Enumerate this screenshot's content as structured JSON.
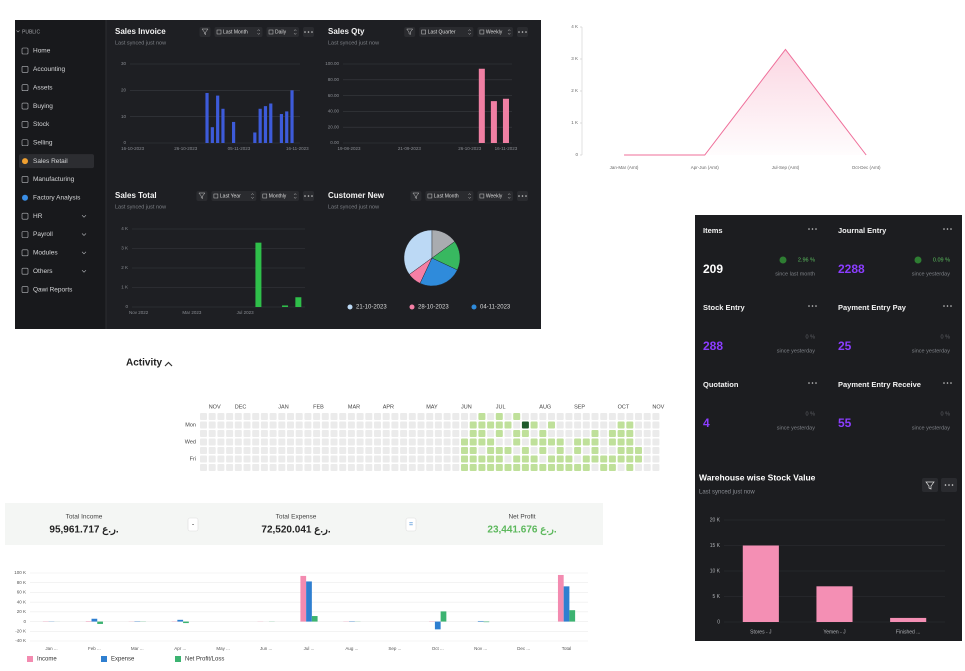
{
  "sidebar": {
    "section": "PUBLIC",
    "items": [
      "Home",
      "Accounting",
      "Assets",
      "Buying",
      "Stock",
      "Selling",
      "Sales Retail",
      "Manufacturing",
      "Factory Analysis",
      "HR",
      "Payroll",
      "Modules",
      "Others",
      "Qawi Reports"
    ]
  },
  "chart_data": [
    {
      "type": "bar",
      "title": "Sales Invoice",
      "subtitle": "Last synced just now",
      "filters": [
        "Last Month",
        "Daily"
      ],
      "categories": [
        "16-10-2023",
        null,
        null,
        null,
        null,
        null,
        null,
        null,
        null,
        null,
        "26-10-2023",
        null,
        null,
        null,
        null,
        null,
        null,
        null,
        null,
        null,
        "05-11-2023",
        null,
        null,
        null,
        null,
        null,
        null,
        null,
        null,
        null,
        null,
        "16-11-2023"
      ],
      "values": [
        null,
        null,
        null,
        null,
        null,
        null,
        null,
        null,
        null,
        null,
        null,
        null,
        null,
        null,
        19,
        6,
        18,
        13,
        null,
        8,
        null,
        null,
        null,
        4,
        13,
        14,
        15,
        null,
        11,
        12,
        20,
        null
      ],
      "color": "#3d5bd9",
      "ylim": [
        0,
        30
      ],
      "yticks": [
        0,
        10,
        20,
        30
      ],
      "grid": true
    },
    {
      "type": "bar",
      "title": "Sales Qty",
      "subtitle": "Last synced just now",
      "filters": [
        "Last Quarter",
        "Weekly"
      ],
      "categories": [
        "19-08-2023",
        null,
        null,
        null,
        null,
        "21-09-2023",
        null,
        null,
        null,
        null,
        "26-10-2023",
        null,
        null,
        "16-11-2023"
      ],
      "values": [
        null,
        null,
        null,
        null,
        null,
        null,
        null,
        null,
        null,
        null,
        null,
        94,
        53,
        56
      ],
      "color": "#f07fa3",
      "ylim": [
        0,
        100
      ],
      "yticks": [
        {
          "value": 0,
          "label": "0.00"
        },
        {
          "value": 20,
          "label": "20.00"
        },
        {
          "value": 40,
          "label": "40.00"
        },
        {
          "value": 60,
          "label": "60.00"
        },
        {
          "value": 80,
          "label": "80.00"
        },
        {
          "value": 100,
          "label": "100.00"
        }
      ],
      "grid": true
    },
    {
      "type": "bar",
      "title": "Sales Total",
      "subtitle": "Last synced just now",
      "filters": [
        "Last Year",
        "Monthly"
      ],
      "categories": [
        "Nov 2022",
        null,
        null,
        null,
        "Mar 2023",
        null,
        null,
        null,
        "Jul 2023",
        null,
        null,
        null,
        null
      ],
      "values": [
        null,
        null,
        null,
        null,
        null,
        null,
        null,
        null,
        null,
        3300,
        null,
        80,
        500
      ],
      "color": "#2fbf4a",
      "ylim": [
        0,
        4000
      ],
      "yticks": [
        0,
        {
          "value": 1000,
          "label": "1 K"
        },
        {
          "value": 2000,
          "label": "2 K"
        },
        {
          "value": 3000,
          "label": "3 K"
        },
        {
          "value": 4000,
          "label": "4 K"
        }
      ],
      "grid": true
    },
    {
      "type": "pie",
      "title": "Customer New",
      "subtitle": "Last synced just now",
      "filters": [
        "Last Month",
        "Weekly"
      ],
      "categories": [
        "21-10-2023",
        "28-10-2023",
        "04-11-2023",
        null,
        null
      ],
      "values": [
        35,
        8,
        25,
        17,
        15
      ],
      "colors": [
        "#bcd9f5",
        "#f57fa5",
        "#2f8bdb",
        "#38b860",
        "#a9acb0"
      ]
    },
    {
      "type": "line",
      "categories": [
        "Jan-Mar (Amt)",
        "Apr-Jun (Amt)",
        "Jul-Sep (Amt)",
        "Oct-Dec (Amt)"
      ],
      "values": [
        0,
        0,
        3300,
        0
      ],
      "color": "#ef6f9a",
      "ylim": [
        0,
        4000
      ],
      "yticks": [
        0,
        {
          "value": 1000,
          "label": "1 K"
        },
        {
          "value": 2000,
          "label": "2 K"
        },
        {
          "value": 3000,
          "label": "3 K"
        },
        {
          "value": 4000,
          "label": "4 K"
        }
      ],
      "grid": false
    },
    {
      "type": "bar",
      "title": "Warehouse wise Stock Value",
      "subtitle": "Last synced just now",
      "categories": [
        "Stores - J",
        "Yemen - J",
        "Finished ..."
      ],
      "values": [
        15000,
        7000,
        800
      ],
      "color": "#f48fb4",
      "ylim": [
        0,
        20000
      ],
      "yticks": [
        0,
        {
          "value": 5000,
          "label": "5 K"
        },
        {
          "value": 10000,
          "label": "10 K"
        },
        {
          "value": 15000,
          "label": "15 K"
        },
        {
          "value": 20000,
          "label": "20 K"
        }
      ],
      "grid": true
    },
    {
      "type": "grouped_bar",
      "categories": [
        "Jan ...",
        "Feb ...",
        "Mar ...",
        "Apr ...",
        "May ...",
        "Jun ...",
        "Jul ...",
        "Aug ...",
        "Sep ...",
        "Oct ...",
        "Nov ...",
        "Dec ...",
        "Total"
      ],
      "series": [
        {
          "name": "Income",
          "color": "#f38bb0",
          "values": [
            500,
            900,
            300,
            500,
            0,
            300,
            94000,
            400,
            0,
            600,
            0,
            0,
            95961.717
          ]
        },
        {
          "name": "Expense",
          "color": "#2f7fd0",
          "values": [
            400,
            5800,
            700,
            3600,
            0,
            0,
            82600,
            700,
            0,
            -16000,
            1200,
            0,
            72520.041
          ]
        },
        {
          "name": "Net Profit/Loss",
          "color": "#3cb371",
          "values": [
            100,
            -4900,
            -400,
            -3100,
            0,
            300,
            11400,
            -300,
            0,
            21000,
            -1200,
            0,
            23441.676
          ]
        }
      ],
      "ylim": [
        -40000,
        100000
      ],
      "yticks": [
        {
          "value": -40000,
          "label": "-40 K"
        },
        {
          "value": -20000,
          "label": "-20 K"
        },
        0,
        {
          "value": 20000,
          "label": "20 K"
        },
        {
          "value": 40000,
          "label": "40 K"
        },
        {
          "value": 60000,
          "label": "60 K"
        },
        {
          "value": 80000,
          "label": "80 K"
        },
        {
          "value": 100000,
          "label": "100 K"
        }
      ],
      "grid": true
    },
    {
      "type": "heatmap",
      "title": "Activity",
      "months": [
        "NOV",
        "DEC",
        "JAN",
        "FEB",
        "MAR",
        "APR",
        "MAY",
        "JUN",
        "JUL",
        "AUG",
        "SEP",
        "OCT",
        "NOV"
      ],
      "days": [
        null,
        "Mon",
        null,
        "Wed",
        null,
        "Fri",
        null
      ],
      "colors": [
        "#ebebeb",
        "#bfe09a",
        "#9fcf72",
        "#1e5a2a"
      ],
      "values": [
        [
          0,
          0,
          0,
          0,
          0,
          0,
          0
        ],
        [
          0,
          0,
          0,
          0,
          0,
          0,
          0
        ],
        [
          0,
          0,
          0,
          0,
          0,
          0,
          0
        ],
        [
          0,
          0,
          0,
          0,
          0,
          0,
          0
        ],
        [
          0,
          0,
          0,
          0,
          0,
          0,
          0
        ],
        [
          0,
          0,
          0,
          0,
          0,
          0,
          0
        ],
        [
          0,
          0,
          0,
          0,
          0,
          0,
          0
        ],
        [
          0,
          0,
          0,
          0,
          0,
          0,
          0
        ],
        [
          0,
          0,
          0,
          0,
          0,
          0,
          0
        ],
        [
          0,
          0,
          0,
          0,
          0,
          0,
          0
        ],
        [
          0,
          0,
          0,
          0,
          0,
          0,
          0
        ],
        [
          0,
          0,
          0,
          0,
          0,
          0,
          0
        ],
        [
          0,
          0,
          0,
          0,
          0,
          0,
          0
        ],
        [
          0,
          0,
          0,
          0,
          0,
          0,
          0
        ],
        [
          0,
          0,
          0,
          0,
          0,
          0,
          0
        ],
        [
          0,
          0,
          0,
          0,
          0,
          0,
          0
        ],
        [
          0,
          0,
          0,
          0,
          0,
          0,
          0
        ],
        [
          0,
          0,
          0,
          0,
          0,
          0,
          0
        ],
        [
          0,
          0,
          0,
          0,
          0,
          0,
          0
        ],
        [
          0,
          0,
          0,
          0,
          0,
          0,
          0
        ],
        [
          0,
          0,
          0,
          0,
          0,
          0,
          0
        ],
        [
          0,
          0,
          0,
          0,
          0,
          0,
          0
        ],
        [
          0,
          0,
          0,
          0,
          0,
          0,
          0
        ],
        [
          0,
          0,
          0,
          0,
          0,
          0,
          0
        ],
        [
          0,
          0,
          0,
          0,
          0,
          0,
          0
        ],
        [
          0,
          0,
          0,
          0,
          0,
          0,
          0
        ],
        [
          0,
          0,
          0,
          0,
          0,
          0,
          0
        ],
        [
          0,
          0,
          0,
          0,
          0,
          0,
          0
        ],
        [
          0,
          0,
          0,
          0,
          0,
          0,
          0
        ],
        [
          0,
          0,
          0,
          0,
          0,
          0,
          0
        ],
        [
          0,
          0,
          0,
          1,
          1,
          1,
          1
        ],
        [
          0,
          1,
          1,
          1,
          1,
          1,
          1
        ],
        [
          1,
          1,
          1,
          1,
          0,
          1,
          1
        ],
        [
          0,
          1,
          0,
          1,
          1,
          1,
          1
        ],
        [
          1,
          1,
          1,
          0,
          1,
          1,
          1
        ],
        [
          0,
          1,
          0,
          0,
          1,
          0,
          1
        ],
        [
          1,
          0,
          1,
          1,
          0,
          1,
          1
        ],
        [
          0,
          3,
          1,
          0,
          1,
          1,
          1
        ],
        [
          0,
          1,
          0,
          1,
          0,
          1,
          1
        ],
        [
          0,
          0,
          1,
          1,
          1,
          0,
          1
        ],
        [
          0,
          1,
          0,
          1,
          0,
          1,
          1
        ],
        [
          0,
          0,
          0,
          1,
          1,
          1,
          1
        ],
        [
          0,
          0,
          0,
          0,
          0,
          1,
          1
        ],
        [
          0,
          0,
          0,
          1,
          1,
          0,
          1
        ],
        [
          0,
          0,
          0,
          1,
          0,
          1,
          1
        ],
        [
          0,
          0,
          1,
          1,
          1,
          1,
          0
        ],
        [
          0,
          0,
          0,
          0,
          0,
          1,
          1
        ],
        [
          0,
          0,
          1,
          1,
          0,
          1,
          1
        ],
        [
          0,
          1,
          1,
          1,
          1,
          1,
          0
        ],
        [
          0,
          1,
          1,
          1,
          1,
          1,
          1
        ],
        [
          0,
          0,
          0,
          0,
          1,
          1,
          0
        ],
        [
          0,
          0,
          0,
          0,
          0,
          0,
          0
        ],
        [
          0,
          0,
          0,
          0,
          0,
          0,
          0
        ]
      ]
    }
  ],
  "cards": [
    {
      "title": "Items",
      "value": 209,
      "change": "2.96 %",
      "note": "since last month"
    },
    {
      "title": "Journal Entry",
      "value": 2288,
      "change": "0.09 %",
      "note": "since yesterday"
    },
    {
      "title": "Stock Entry",
      "value": 288,
      "change": "0 %",
      "note": "since yesterday"
    },
    {
      "title": "Payment Entry Pay",
      "value": 25,
      "change": "0 %",
      "note": "since yesterday"
    },
    {
      "title": "Quotation",
      "value": 4,
      "change": "0 %",
      "note": "since yesterday"
    },
    {
      "title": "Payment Entry Receive",
      "value": 55,
      "change": "0 %",
      "note": "since yesterday"
    }
  ],
  "totals": [
    {
      "label": "Total Income",
      "value": "95,961.717 ر.ع."
    },
    {
      "label": "Total Expense",
      "value": "72,520.041 ر.ع."
    },
    {
      "label": "Net Profit",
      "value": "23,441.676 ر.ع."
    }
  ],
  "operators": [
    "-",
    "="
  ]
}
